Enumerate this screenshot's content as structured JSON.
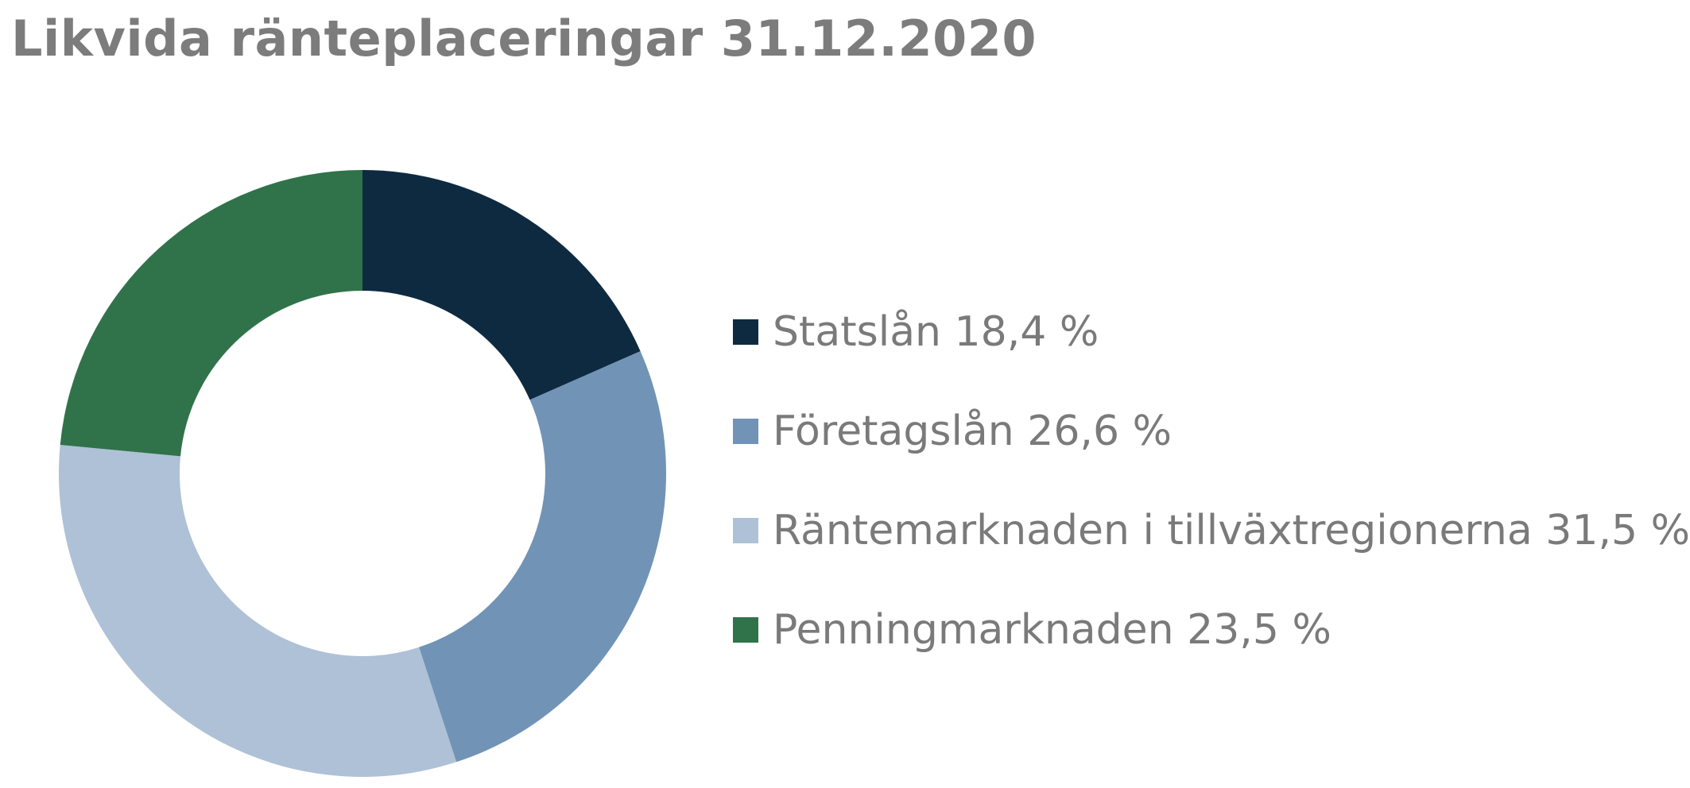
{
  "header": {
    "title": "Likvida ränteplaceringar 31.12.2020"
  },
  "chart_data": {
    "type": "pie",
    "style": "donut",
    "title": "Likvida ränteplaceringar 31.12.2020",
    "legend_position": "right",
    "slices": [
      {
        "label": "Statslån",
        "value": 18.4,
        "display": "Statslån 18,4 %",
        "color": "#0e2a40"
      },
      {
        "label": "Företagslån",
        "value": 26.6,
        "display": "Företagslån 26,6 %",
        "color": "#7193b6"
      },
      {
        "label": "Räntemarknaden i tillväxtregionerna",
        "value": 31.5,
        "display": "Räntemarknaden i tillväxtregionerna 31,5 %",
        "color": "#aec1d6"
      },
      {
        "label": "Penningmarknaden",
        "value": 23.5,
        "display": "Penningmarknaden 23,5 %",
        "color": "#30734a"
      }
    ]
  }
}
